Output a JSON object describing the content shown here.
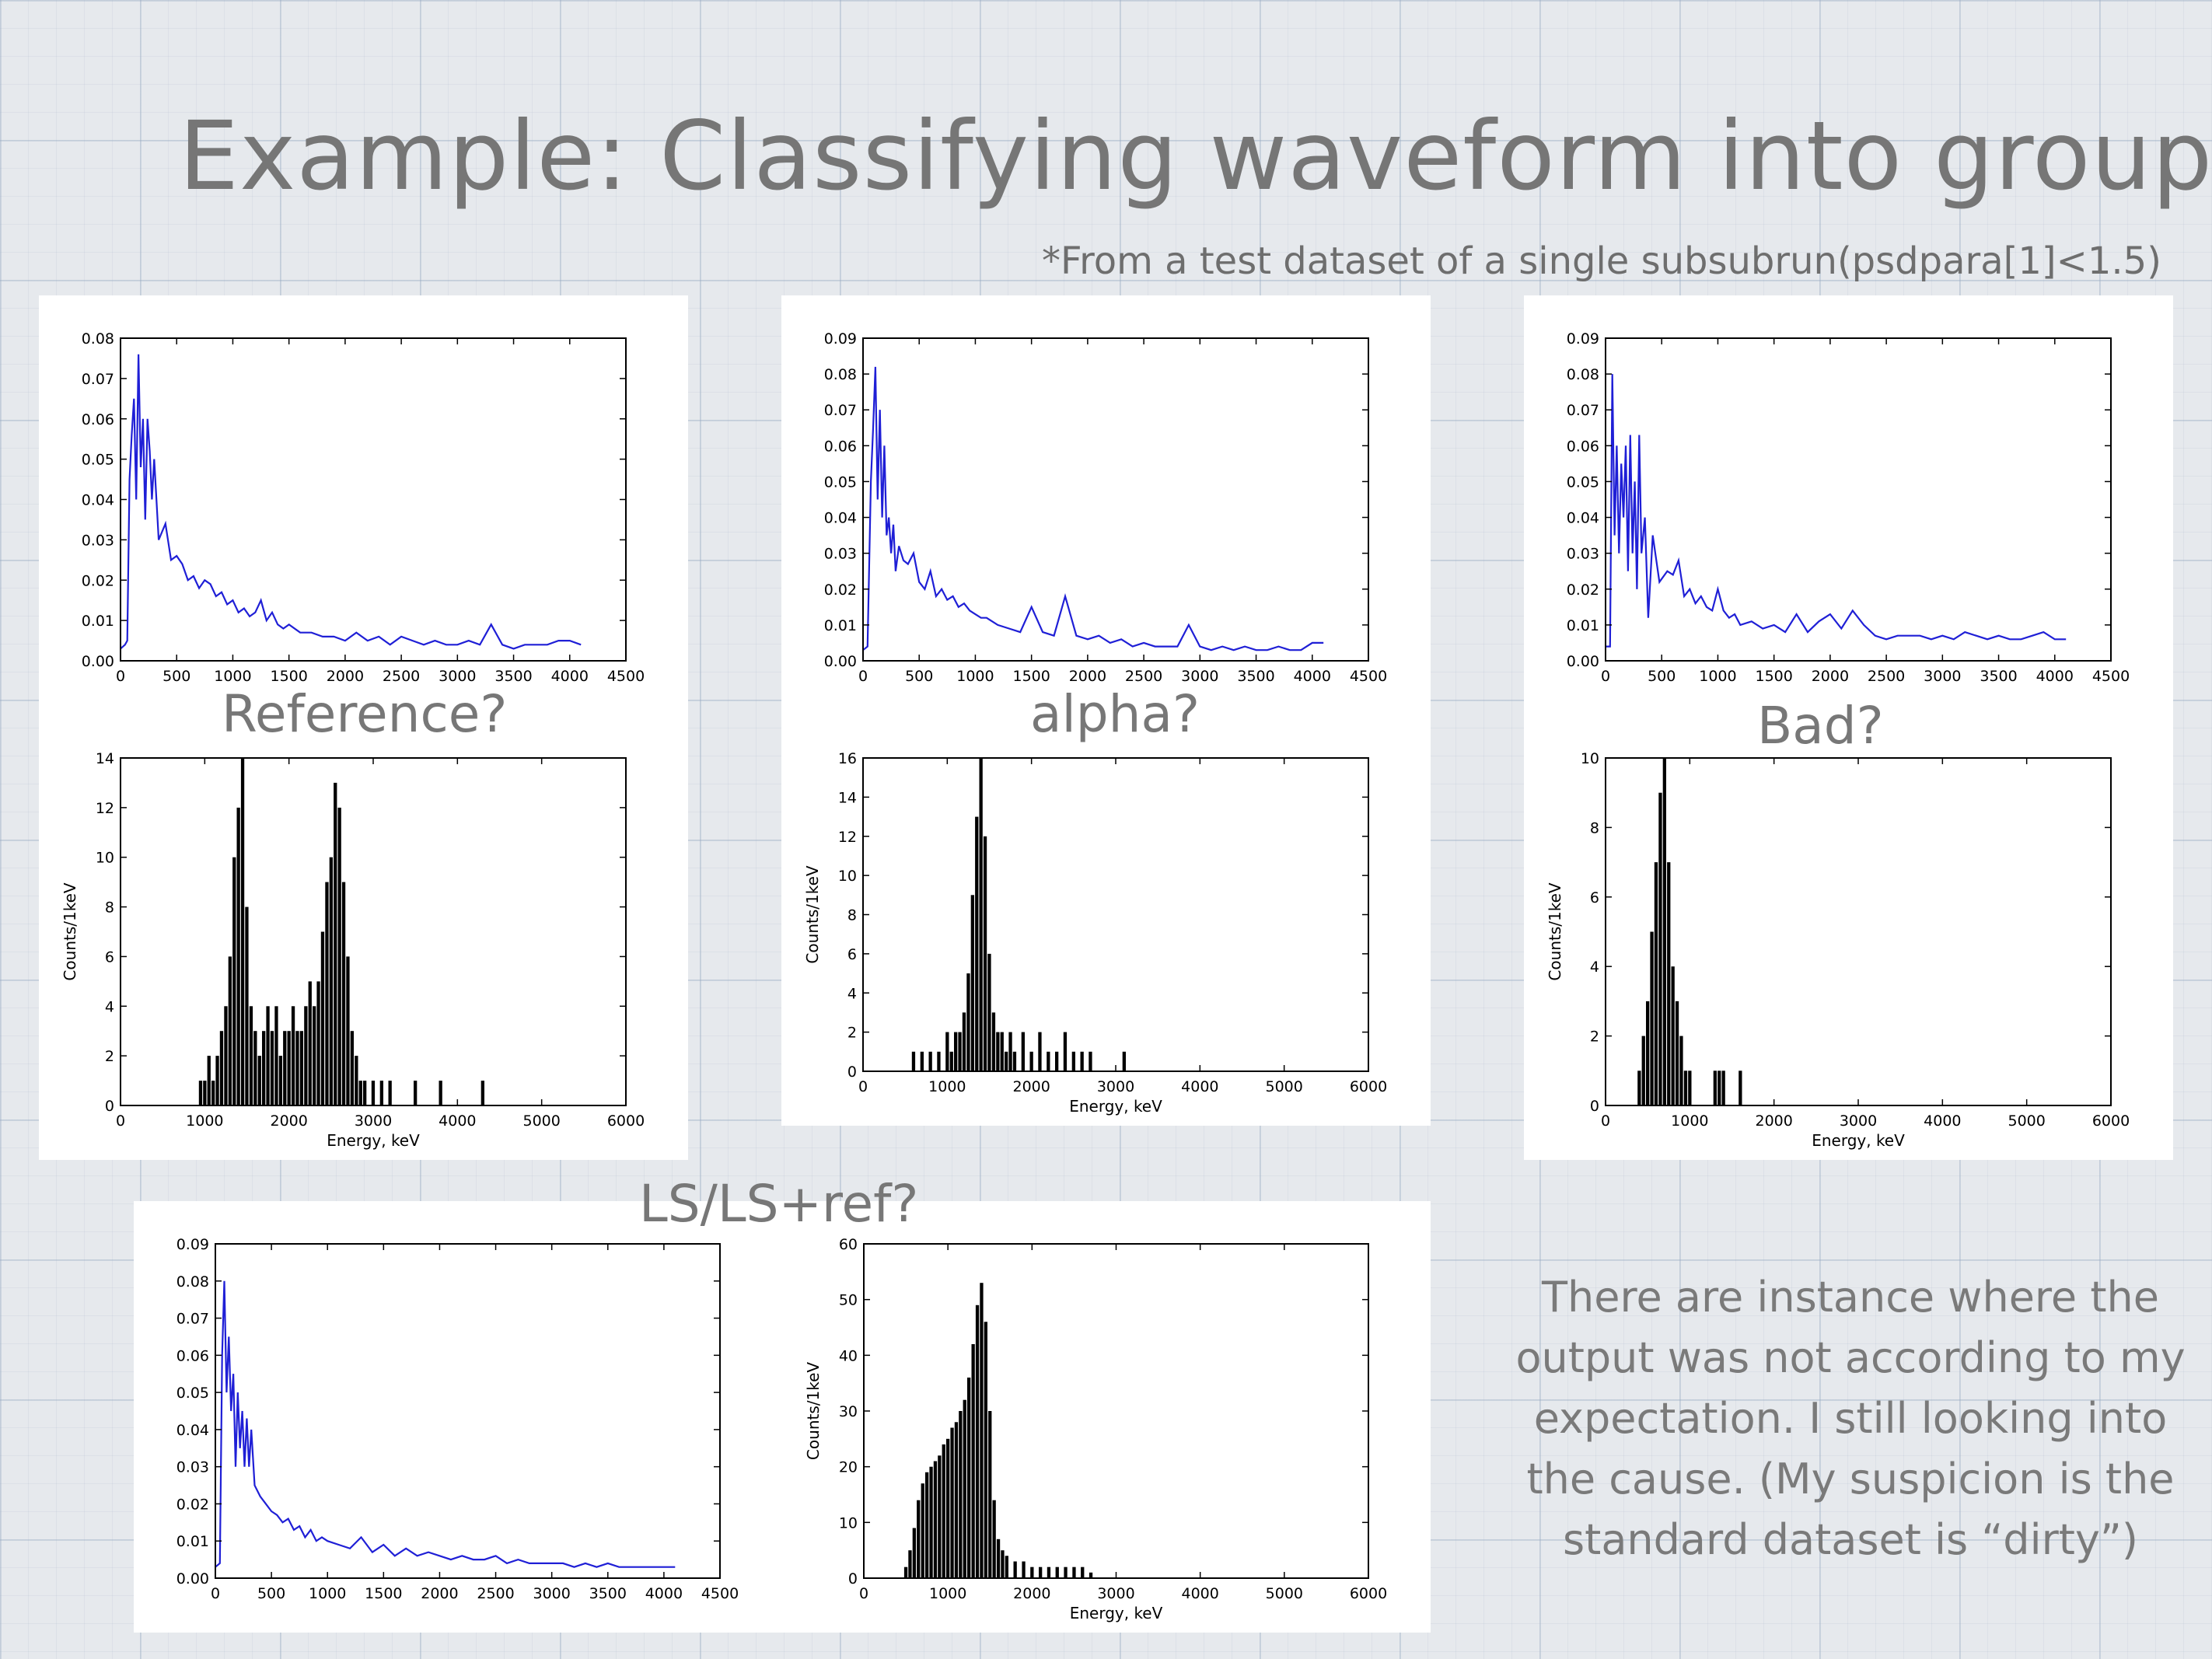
{
  "slide": {
    "title": "Example: Classifying waveform into groups",
    "subtitle": "*From a test dataset of a single subsubrun(psdpara[1]<1.5)",
    "note": "There are instance where the output was not according to my expectation. I still looking into the cause. (My suspicion is the standard dataset is “dirty”)"
  },
  "groups": [
    {
      "id": "reference",
      "label": "Reference?"
    },
    {
      "id": "alpha",
      "label": "alpha?"
    },
    {
      "id": "bad",
      "label": "Bad?"
    },
    {
      "id": "ls",
      "label": "LS/LS+ref?"
    }
  ],
  "colors": {
    "waveform": "#1f1fd6",
    "histogram": "#000000",
    "text": "#777777"
  },
  "chart_data": [
    {
      "id": "ref-waveform",
      "type": "line",
      "title": "",
      "xlabel": "",
      "ylabel": "",
      "xlim": [
        0,
        4500
      ],
      "ylim": [
        0,
        0.08
      ],
      "xticks": [
        0,
        500,
        1000,
        1500,
        2000,
        2500,
        3000,
        3500,
        4000,
        4500
      ],
      "yticks": [
        "0.00",
        "0.01",
        "0.02",
        "0.03",
        "0.04",
        "0.05",
        "0.06",
        "0.07",
        "0.08"
      ],
      "series": [
        {
          "x": [
            0,
            40,
            60,
            80,
            100,
            120,
            140,
            160,
            180,
            200,
            220,
            240,
            260,
            280,
            300,
            340,
            400,
            450,
            500,
            550,
            600,
            650,
            700,
            750,
            800,
            850,
            900,
            950,
            1000,
            1050,
            1100,
            1150,
            1200,
            1250,
            1300,
            1350,
            1400,
            1450,
            1500,
            1600,
            1700,
            1800,
            1900,
            2000,
            2100,
            2200,
            2300,
            2400,
            2500,
            2600,
            2700,
            2800,
            2900,
            3000,
            3100,
            3200,
            3300,
            3400,
            3500,
            3600,
            3700,
            3800,
            3900,
            4000,
            4100
          ],
          "y": [
            0.003,
            0.004,
            0.005,
            0.045,
            0.056,
            0.065,
            0.04,
            0.076,
            0.048,
            0.06,
            0.035,
            0.06,
            0.052,
            0.04,
            0.05,
            0.03,
            0.034,
            0.025,
            0.026,
            0.024,
            0.02,
            0.021,
            0.018,
            0.02,
            0.019,
            0.016,
            0.017,
            0.014,
            0.015,
            0.012,
            0.013,
            0.011,
            0.012,
            0.015,
            0.01,
            0.012,
            0.009,
            0.008,
            0.009,
            0.007,
            0.007,
            0.006,
            0.006,
            0.005,
            0.007,
            0.005,
            0.006,
            0.004,
            0.006,
            0.005,
            0.004,
            0.005,
            0.004,
            0.004,
            0.005,
            0.004,
            0.009,
            0.004,
            0.003,
            0.004,
            0.004,
            0.004,
            0.005,
            0.005,
            0.004
          ]
        }
      ]
    },
    {
      "id": "ref-spectrum",
      "type": "bar",
      "title": "",
      "xlabel": "Energy, keV",
      "ylabel": "Counts/1keV",
      "xlim": [
        0,
        6000
      ],
      "ylim": [
        0,
        14
      ],
      "xticks": [
        0,
        1000,
        2000,
        3000,
        4000,
        5000,
        6000
      ],
      "yticks": [
        0,
        2,
        4,
        6,
        8,
        10,
        12,
        14
      ],
      "x": [
        950,
        1000,
        1050,
        1100,
        1150,
        1200,
        1250,
        1300,
        1350,
        1400,
        1450,
        1500,
        1550,
        1600,
        1650,
        1700,
        1750,
        1800,
        1850,
        1900,
        1950,
        2000,
        2050,
        2100,
        2150,
        2200,
        2250,
        2300,
        2350,
        2400,
        2450,
        2500,
        2550,
        2600,
        2650,
        2700,
        2750,
        2800,
        2850,
        2900,
        3000,
        3100,
        3200,
        3500,
        3800,
        4300
      ],
      "values": [
        1,
        1,
        2,
        1,
        2,
        3,
        4,
        6,
        10,
        12,
        14,
        8,
        4,
        3,
        2,
        3,
        4,
        3,
        4,
        2,
        3,
        3,
        4,
        3,
        3,
        4,
        5,
        4,
        5,
        7,
        9,
        10,
        13,
        12,
        9,
        6,
        3,
        2,
        1,
        1,
        1,
        1,
        1,
        1,
        1,
        1
      ]
    },
    {
      "id": "alpha-waveform",
      "type": "line",
      "title": "",
      "xlabel": "",
      "ylabel": "",
      "xlim": [
        0,
        4500
      ],
      "ylim": [
        0,
        0.09
      ],
      "xticks": [
        0,
        500,
        1000,
        1500,
        2000,
        2500,
        3000,
        3500,
        4000,
        4500
      ],
      "yticks": [
        "0.00",
        "0.01",
        "0.02",
        "0.03",
        "0.04",
        "0.05",
        "0.06",
        "0.07",
        "0.08",
        "0.09"
      ],
      "series": [
        {
          "x": [
            0,
            40,
            70,
            90,
            110,
            130,
            150,
            170,
            190,
            210,
            230,
            250,
            270,
            290,
            320,
            360,
            400,
            450,
            500,
            550,
            600,
            650,
            700,
            750,
            800,
            850,
            900,
            950,
            1000,
            1050,
            1100,
            1150,
            1200,
            1300,
            1400,
            1500,
            1600,
            1700,
            1800,
            1900,
            2000,
            2100,
            2200,
            2300,
            2400,
            2500,
            2600,
            2700,
            2800,
            2900,
            3000,
            3100,
            3200,
            3300,
            3400,
            3500,
            3600,
            3700,
            3800,
            3900,
            4000,
            4100
          ],
          "y": [
            0.003,
            0.004,
            0.05,
            0.065,
            0.082,
            0.045,
            0.07,
            0.04,
            0.06,
            0.035,
            0.04,
            0.03,
            0.038,
            0.025,
            0.032,
            0.028,
            0.027,
            0.03,
            0.022,
            0.02,
            0.025,
            0.018,
            0.02,
            0.017,
            0.018,
            0.015,
            0.016,
            0.014,
            0.013,
            0.012,
            0.012,
            0.011,
            0.01,
            0.009,
            0.008,
            0.015,
            0.008,
            0.007,
            0.018,
            0.007,
            0.006,
            0.007,
            0.005,
            0.006,
            0.004,
            0.005,
            0.004,
            0.004,
            0.004,
            0.01,
            0.004,
            0.003,
            0.004,
            0.003,
            0.004,
            0.003,
            0.003,
            0.004,
            0.003,
            0.003,
            0.005,
            0.005
          ]
        }
      ]
    },
    {
      "id": "alpha-spectrum",
      "type": "bar",
      "title": "",
      "xlabel": "Energy, keV",
      "ylabel": "Counts/1keV",
      "xlim": [
        0,
        6000
      ],
      "ylim": [
        0,
        16
      ],
      "xticks": [
        0,
        1000,
        2000,
        3000,
        4000,
        5000,
        6000
      ],
      "yticks": [
        0,
        2,
        4,
        6,
        8,
        10,
        12,
        14,
        16
      ],
      "x": [
        600,
        700,
        800,
        900,
        1000,
        1050,
        1100,
        1150,
        1200,
        1250,
        1300,
        1350,
        1400,
        1450,
        1500,
        1550,
        1600,
        1650,
        1700,
        1750,
        1800,
        1900,
        2000,
        2100,
        2200,
        2300,
        2400,
        2500,
        2600,
        2700,
        3100
      ],
      "values": [
        1,
        1,
        1,
        1,
        2,
        1,
        2,
        2,
        3,
        5,
        9,
        13,
        16,
        12,
        6,
        3,
        2,
        2,
        1,
        2,
        1,
        2,
        1,
        2,
        1,
        1,
        2,
        1,
        1,
        1,
        1
      ]
    },
    {
      "id": "bad-waveform",
      "type": "line",
      "title": "",
      "xlabel": "",
      "ylabel": "",
      "xlim": [
        0,
        4500
      ],
      "ylim": [
        0,
        0.09
      ],
      "xticks": [
        0,
        500,
        1000,
        1500,
        2000,
        2500,
        3000,
        3500,
        4000,
        4500
      ],
      "yticks": [
        "0.00",
        "0.01",
        "0.02",
        "0.03",
        "0.04",
        "0.05",
        "0.06",
        "0.07",
        "0.08",
        "0.09"
      ],
      "series": [
        {
          "x": [
            0,
            40,
            60,
            80,
            100,
            120,
            140,
            160,
            180,
            200,
            220,
            240,
            260,
            280,
            300,
            320,
            350,
            380,
            420,
            480,
            550,
            600,
            650,
            700,
            750,
            800,
            850,
            900,
            950,
            1000,
            1050,
            1100,
            1150,
            1200,
            1300,
            1400,
            1500,
            1600,
            1700,
            1800,
            1900,
            2000,
            2100,
            2200,
            2300,
            2400,
            2500,
            2600,
            2700,
            2800,
            2900,
            3000,
            3100,
            3200,
            3300,
            3400,
            3500,
            3600,
            3700,
            3800,
            3900,
            4000,
            4100
          ],
          "y": [
            0.004,
            0.004,
            0.08,
            0.035,
            0.06,
            0.03,
            0.055,
            0.04,
            0.06,
            0.025,
            0.063,
            0.03,
            0.05,
            0.02,
            0.063,
            0.03,
            0.04,
            0.012,
            0.035,
            0.022,
            0.025,
            0.024,
            0.028,
            0.018,
            0.02,
            0.016,
            0.018,
            0.015,
            0.014,
            0.02,
            0.014,
            0.012,
            0.013,
            0.01,
            0.011,
            0.009,
            0.01,
            0.008,
            0.013,
            0.008,
            0.011,
            0.013,
            0.009,
            0.014,
            0.01,
            0.007,
            0.006,
            0.007,
            0.007,
            0.007,
            0.006,
            0.007,
            0.006,
            0.008,
            0.007,
            0.006,
            0.007,
            0.006,
            0.006,
            0.007,
            0.008,
            0.006,
            0.006
          ]
        }
      ]
    },
    {
      "id": "bad-spectrum",
      "type": "bar",
      "title": "",
      "xlabel": "Energy, keV",
      "ylabel": "Counts/1keV",
      "xlim": [
        0,
        6000
      ],
      "ylim": [
        0,
        10
      ],
      "xticks": [
        0,
        1000,
        2000,
        3000,
        4000,
        5000,
        6000
      ],
      "yticks": [
        0,
        2,
        4,
        6,
        8,
        10
      ],
      "x": [
        400,
        450,
        500,
        550,
        600,
        650,
        700,
        750,
        800,
        850,
        900,
        950,
        1000,
        1300,
        1350,
        1400,
        1600
      ],
      "values": [
        1,
        2,
        3,
        5,
        7,
        9,
        10,
        7,
        4,
        3,
        2,
        1,
        1,
        1,
        1,
        1,
        1
      ]
    },
    {
      "id": "ls-waveform",
      "type": "line",
      "title": "",
      "xlabel": "",
      "ylabel": "",
      "xlim": [
        0,
        4500
      ],
      "ylim": [
        0,
        0.09
      ],
      "xticks": [
        0,
        500,
        1000,
        1500,
        2000,
        2500,
        3000,
        3500,
        4000,
        4500
      ],
      "yticks": [
        "0.00",
        "0.01",
        "0.02",
        "0.03",
        "0.04",
        "0.05",
        "0.06",
        "0.07",
        "0.08",
        "0.09"
      ],
      "series": [
        {
          "x": [
            0,
            40,
            60,
            80,
            100,
            120,
            140,
            160,
            180,
            200,
            220,
            240,
            260,
            280,
            300,
            320,
            350,
            400,
            450,
            500,
            550,
            600,
            650,
            700,
            750,
            800,
            850,
            900,
            950,
            1000,
            1100,
            1200,
            1300,
            1400,
            1500,
            1600,
            1700,
            1800,
            1900,
            2000,
            2100,
            2200,
            2300,
            2400,
            2500,
            2600,
            2700,
            2800,
            2900,
            3000,
            3100,
            3200,
            3300,
            3400,
            3500,
            3600,
            3700,
            3800,
            3900,
            4000,
            4100
          ],
          "y": [
            0.003,
            0.004,
            0.06,
            0.08,
            0.05,
            0.065,
            0.045,
            0.055,
            0.03,
            0.05,
            0.035,
            0.045,
            0.03,
            0.043,
            0.03,
            0.04,
            0.025,
            0.022,
            0.02,
            0.018,
            0.017,
            0.015,
            0.016,
            0.013,
            0.014,
            0.011,
            0.013,
            0.01,
            0.011,
            0.01,
            0.009,
            0.008,
            0.011,
            0.007,
            0.009,
            0.006,
            0.008,
            0.006,
            0.007,
            0.006,
            0.005,
            0.006,
            0.005,
            0.005,
            0.006,
            0.004,
            0.005,
            0.004,
            0.004,
            0.004,
            0.004,
            0.003,
            0.004,
            0.003,
            0.004,
            0.003,
            0.003,
            0.003,
            0.003,
            0.003,
            0.003
          ]
        }
      ]
    },
    {
      "id": "ls-spectrum",
      "type": "bar",
      "title": "",
      "xlabel": "Energy, keV",
      "ylabel": "Counts/1keV",
      "xlim": [
        0,
        6000
      ],
      "ylim": [
        0,
        60
      ],
      "xticks": [
        0,
        1000,
        2000,
        3000,
        4000,
        5000,
        6000
      ],
      "yticks": [
        0,
        10,
        20,
        30,
        40,
        50,
        60
      ],
      "x": [
        500,
        550,
        600,
        650,
        700,
        750,
        800,
        850,
        900,
        950,
        1000,
        1050,
        1100,
        1150,
        1200,
        1250,
        1300,
        1350,
        1400,
        1450,
        1500,
        1550,
        1600,
        1650,
        1700,
        1800,
        1900,
        2000,
        2100,
        2200,
        2300,
        2400,
        2500,
        2600,
        2700
      ],
      "values": [
        2,
        5,
        9,
        14,
        17,
        19,
        20,
        21,
        22,
        24,
        25,
        27,
        28,
        30,
        32,
        36,
        42,
        49,
        53,
        46,
        30,
        14,
        7,
        5,
        4,
        3,
        3,
        2,
        2,
        2,
        2,
        2,
        2,
        2,
        1
      ]
    }
  ]
}
